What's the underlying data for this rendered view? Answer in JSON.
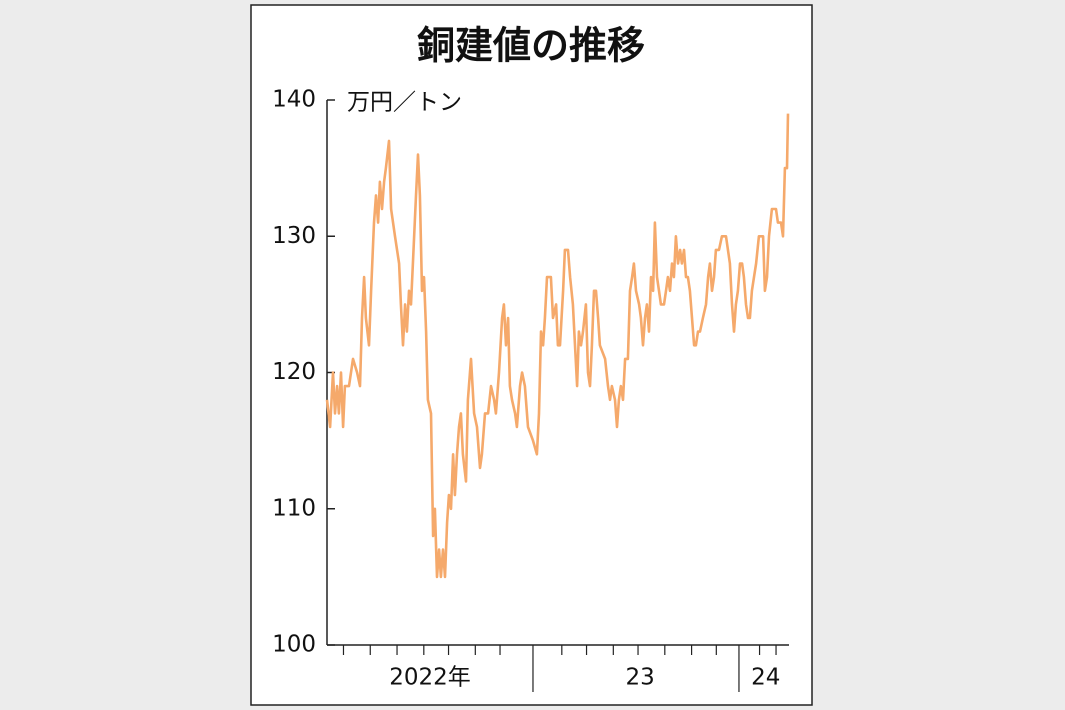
{
  "chart_data": {
    "type": "line",
    "title": "銅建値の推移",
    "y_unit_label": "万円／トン",
    "color": "#f5a96b",
    "xlim": [
      2022,
      2024.24
    ],
    "ylim": [
      100,
      140
    ],
    "yticks": [
      100,
      110,
      120,
      130,
      140
    ],
    "xticks": [
      {
        "value": 2022.5,
        "label": "2022年"
      },
      {
        "value": 2023.52,
        "label": "23"
      },
      {
        "value": 2024.13,
        "label": "24"
      }
    ],
    "year_dividers": [
      2023,
      2024
    ],
    "minor_ticks": [
      2022.08,
      2022.21,
      2022.34,
      2022.47,
      2022.59,
      2022.72,
      2022.84,
      2023.14,
      2023.26,
      2023.39,
      2023.51,
      2023.64,
      2023.77,
      2023.89,
      2024.1,
      2024.18
    ],
    "x": [
      2022.0,
      2022.015,
      2022.029,
      2022.039,
      2022.049,
      2022.058,
      2022.068,
      2022.078,
      2022.087,
      2022.107,
      2022.126,
      2022.146,
      2022.16,
      2022.17,
      2022.18,
      2022.189,
      2022.204,
      2022.214,
      2022.228,
      2022.238,
      2022.248,
      2022.257,
      2022.267,
      2022.277,
      2022.286,
      2022.301,
      2022.311,
      2022.33,
      2022.35,
      2022.359,
      2022.369,
      2022.379,
      2022.388,
      2022.398,
      2022.408,
      2022.417,
      2022.432,
      2022.442,
      2022.451,
      2022.461,
      2022.471,
      2022.481,
      2022.49,
      2022.505,
      2022.515,
      2022.524,
      2022.534,
      2022.544,
      2022.553,
      2022.563,
      2022.573,
      2022.583,
      2022.592,
      2022.602,
      2022.612,
      2022.621,
      2022.631,
      2022.641,
      2022.65,
      2022.66,
      2022.675,
      2022.684,
      2022.699,
      2022.714,
      2022.728,
      2022.743,
      2022.752,
      2022.767,
      2022.782,
      2022.796,
      2022.811,
      2022.82,
      2022.835,
      2022.85,
      2022.859,
      2022.869,
      2022.879,
      2022.888,
      2022.898,
      2022.913,
      2022.922,
      2022.937,
      2022.947,
      2022.961,
      2022.976,
      2023.0,
      2023.019,
      2023.029,
      2023.039,
      2023.049,
      2023.058,
      2023.068,
      2023.087,
      2023.097,
      2023.112,
      2023.121,
      2023.131,
      2023.146,
      2023.155,
      2023.17,
      2023.18,
      2023.194,
      2023.204,
      2023.214,
      2023.223,
      2023.233,
      2023.243,
      2023.257,
      2023.267,
      2023.277,
      2023.286,
      2023.296,
      2023.306,
      2023.316,
      2023.325,
      2023.35,
      2023.364,
      2023.374,
      2023.383,
      2023.398,
      2023.408,
      2023.417,
      2023.427,
      2023.437,
      2023.447,
      2023.461,
      2023.471,
      2023.481,
      2023.49,
      2023.5,
      2023.515,
      2023.524,
      2023.534,
      2023.544,
      2023.553,
      2023.563,
      2023.573,
      2023.583,
      2023.592,
      2023.602,
      2023.612,
      2023.621,
      2023.636,
      2023.646,
      2023.655,
      2023.665,
      2023.675,
      2023.684,
      2023.694,
      2023.704,
      2023.714,
      2023.723,
      2023.733,
      2023.743,
      2023.752,
      2023.762,
      2023.772,
      2023.782,
      2023.791,
      2023.801,
      2023.811,
      2023.825,
      2023.84,
      2023.85,
      2023.859,
      2023.869,
      2023.879,
      2023.888,
      2023.903,
      2023.917,
      2023.937,
      2023.956,
      2023.966,
      2023.976,
      2023.985,
      2023.995,
      2024.005,
      2024.015,
      2024.024,
      2024.034,
      2024.044,
      2024.053,
      2024.063,
      2024.073,
      2024.083,
      2024.097,
      2024.117,
      2024.126,
      2024.136,
      2024.146,
      2024.16,
      2024.18,
      2024.189,
      2024.204,
      2024.214,
      2024.223,
      2024.233,
      2024.238
    ],
    "values": [
      118,
      116,
      120,
      117,
      119,
      117,
      120,
      116,
      119,
      119,
      121,
      120,
      119,
      124,
      127,
      124,
      122,
      126,
      131,
      133,
      131,
      134,
      132,
      134,
      135,
      137,
      132,
      130,
      128,
      125,
      122,
      125,
      123,
      126,
      125,
      128,
      133,
      136,
      133,
      126,
      127,
      123,
      118,
      117,
      108,
      110,
      105,
      107,
      105,
      107,
      105,
      109,
      111,
      110,
      114,
      111,
      114,
      116,
      117,
      114,
      112,
      118,
      121,
      117,
      116,
      113,
      114,
      117,
      117,
      119,
      118,
      117,
      120,
      124,
      125,
      122,
      124,
      119,
      118,
      117,
      116,
      119,
      120,
      119,
      116,
      115,
      114,
      117,
      123,
      122,
      124,
      127,
      127,
      124,
      125,
      122,
      122,
      126,
      129,
      129,
      127,
      125,
      122,
      119,
      123,
      122,
      123,
      125,
      120,
      119,
      122,
      126,
      126,
      124,
      122,
      121,
      119,
      118,
      119,
      118,
      116,
      118,
      119,
      118,
      121,
      121,
      126,
      127,
      128,
      126,
      125,
      124,
      122,
      124,
      125,
      123,
      127,
      126,
      131,
      127,
      126,
      125,
      125,
      126,
      127,
      126,
      128,
      127,
      130,
      128,
      129,
      128,
      129,
      127,
      127,
      126,
      124,
      122,
      122,
      123,
      123,
      124,
      125,
      127,
      128,
      126,
      127,
      129,
      129,
      130,
      130,
      128,
      125,
      123,
      125,
      126,
      128,
      128,
      127,
      125,
      124,
      124,
      126,
      127,
      128,
      130,
      130,
      126,
      127,
      130,
      132,
      132,
      131,
      131,
      130,
      135,
      135,
      139
    ]
  }
}
